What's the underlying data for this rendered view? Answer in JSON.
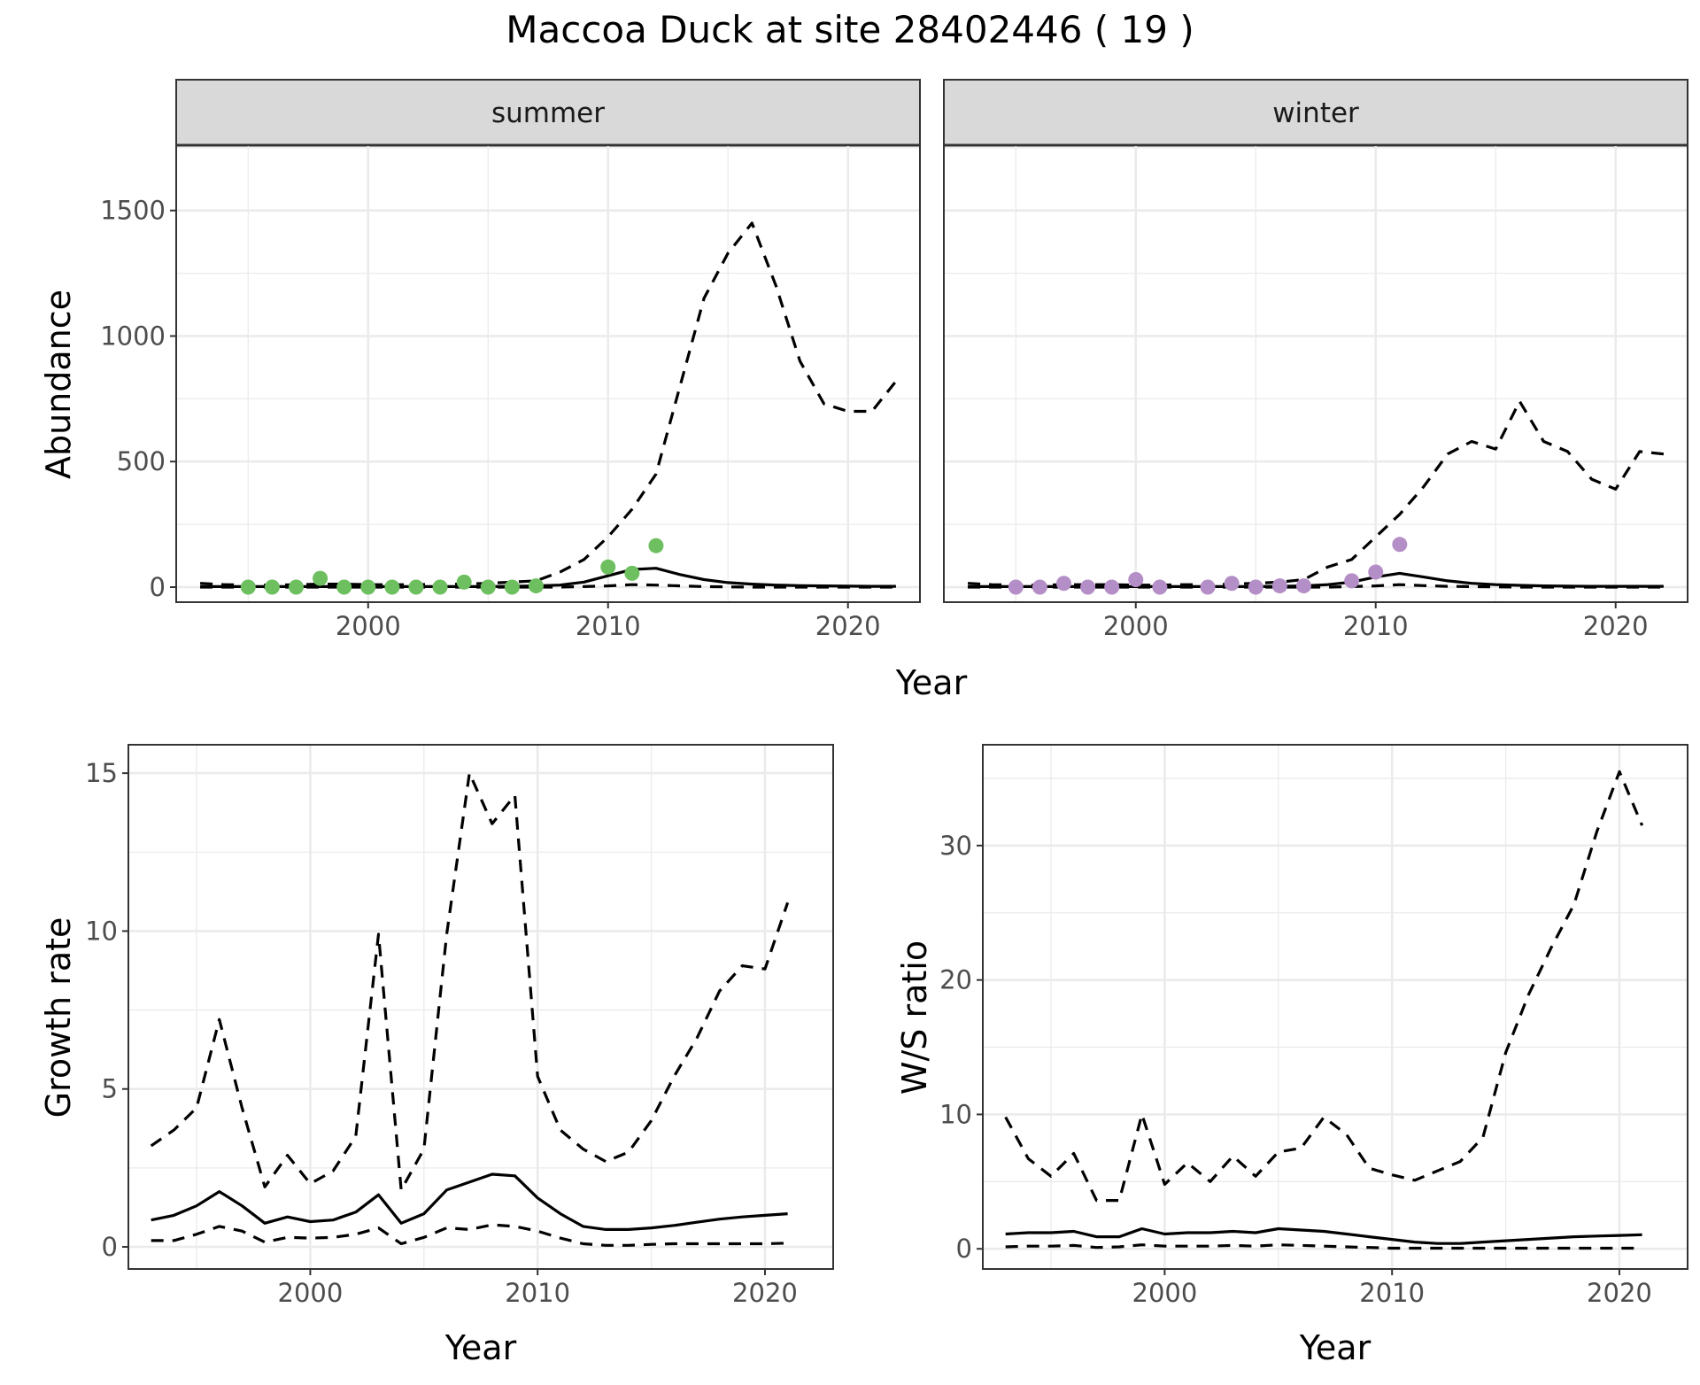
{
  "figure": {
    "title": "Maccoa Duck at site 28402446 ( 19 )"
  },
  "style": {
    "summer_point_color": "#6dbf5f",
    "winter_point_color": "#b48ec6",
    "line_color": "#000000",
    "grid_major": "#ebebeb",
    "grid_minor": "#f5f5f5",
    "strip_fill": "#d9d9d9",
    "strip_border": "#333333"
  },
  "chart_data": [
    {
      "type": "line",
      "facet": "summer",
      "xlabel": "Year",
      "ylabel": "Abundance",
      "xlim": [
        1992,
        2023
      ],
      "ylim": [
        -60,
        1760
      ],
      "xticks": [
        2000,
        2010,
        2020
      ],
      "yticks": [
        0,
        500,
        1000,
        1500
      ],
      "grid": true,
      "points": {
        "x": [
          1995,
          1996,
          1997,
          1998,
          1999,
          2000,
          2001,
          2002,
          2003,
          2004,
          2005,
          2006,
          2007,
          2010,
          2011,
          2012
        ],
        "y": [
          0,
          0,
          0,
          35,
          0,
          0,
          0,
          0,
          0,
          20,
          0,
          0,
          5,
          80,
          55,
          165
        ]
      },
      "series": [
        {
          "style": "solid",
          "x": [
            1993,
            1994,
            1995,
            1996,
            1997,
            1998,
            1999,
            2000,
            2001,
            2002,
            2003,
            2004,
            2005,
            2006,
            2007,
            2008,
            2009,
            2010,
            2011,
            2012,
            2013,
            2014,
            2015,
            2016,
            2017,
            2018,
            2019,
            2020,
            2021,
            2022
          ],
          "y": [
            2,
            2,
            2,
            2,
            2,
            2,
            2,
            2,
            2,
            2,
            2,
            2,
            2,
            3,
            5,
            8,
            20,
            45,
            70,
            75,
            50,
            30,
            18,
            12,
            8,
            6,
            5,
            4,
            3,
            3
          ]
        },
        {
          "style": "dashed",
          "x": [
            1993,
            1994,
            1995,
            1996,
            1997,
            1998,
            1999,
            2000,
            2001,
            2002,
            2003,
            2004,
            2005,
            2006,
            2007,
            2008,
            2009,
            2010,
            2011,
            2012,
            2013,
            2014,
            2015,
            2016,
            2017,
            2018,
            2019,
            2020,
            2021,
            2022
          ],
          "y": [
            15,
            10,
            8,
            8,
            10,
            12,
            12,
            10,
            10,
            10,
            12,
            12,
            15,
            20,
            25,
            60,
            110,
            200,
            310,
            450,
            800,
            1150,
            1330,
            1450,
            1200,
            900,
            730,
            700,
            700,
            820
          ]
        },
        {
          "style": "dashed",
          "x": [
            1993,
            1994,
            1995,
            1996,
            1997,
            1998,
            1999,
            2000,
            2001,
            2002,
            2003,
            2004,
            2005,
            2006,
            2007,
            2008,
            2009,
            2010,
            2011,
            2012,
            2013,
            2014,
            2015,
            2016,
            2017,
            2018,
            2019,
            2020,
            2021,
            2022
          ],
          "y": [
            0,
            0,
            0,
            0,
            0,
            0,
            0,
            0,
            0,
            0,
            0,
            0,
            0,
            0,
            0,
            0,
            2,
            5,
            10,
            8,
            5,
            2,
            1,
            0,
            0,
            0,
            0,
            0,
            0,
            0
          ]
        }
      ]
    },
    {
      "type": "line",
      "facet": "winter",
      "xlabel": "Year",
      "ylabel": "Abundance",
      "xlim": [
        1992,
        2023
      ],
      "ylim": [
        -60,
        1760
      ],
      "xticks": [
        2000,
        2010,
        2020
      ],
      "yticks": [
        0,
        500,
        1000,
        1500
      ],
      "grid": true,
      "points": {
        "x": [
          1995,
          1996,
          1997,
          1998,
          1999,
          2000,
          2001,
          2003,
          2004,
          2005,
          2006,
          2007,
          2009,
          2010,
          2011
        ],
        "y": [
          0,
          0,
          15,
          0,
          0,
          30,
          0,
          0,
          15,
          0,
          5,
          5,
          25,
          60,
          170
        ]
      },
      "series": [
        {
          "style": "solid",
          "x": [
            1993,
            1994,
            1995,
            1996,
            1997,
            1998,
            1999,
            2000,
            2001,
            2002,
            2003,
            2004,
            2005,
            2006,
            2007,
            2008,
            2009,
            2010,
            2011,
            2012,
            2013,
            2014,
            2015,
            2016,
            2017,
            2018,
            2019,
            2020,
            2021,
            2022
          ],
          "y": [
            2,
            2,
            2,
            2,
            2,
            2,
            2,
            2,
            2,
            2,
            2,
            2,
            2,
            3,
            5,
            10,
            20,
            40,
            55,
            40,
            25,
            15,
            10,
            7,
            5,
            4,
            3,
            3,
            3,
            3
          ]
        },
        {
          "style": "dashed",
          "x": [
            1993,
            1994,
            1995,
            1996,
            1997,
            1998,
            1999,
            2000,
            2001,
            2002,
            2003,
            2004,
            2005,
            2006,
            2007,
            2008,
            2009,
            2010,
            2011,
            2012,
            2013,
            2014,
            2015,
            2016,
            2017,
            2018,
            2019,
            2020,
            2021,
            2022
          ],
          "y": [
            15,
            10,
            8,
            8,
            10,
            10,
            10,
            8,
            8,
            10,
            10,
            12,
            15,
            20,
            30,
            80,
            110,
            200,
            290,
            400,
            530,
            580,
            550,
            740,
            580,
            540,
            430,
            390,
            540,
            530
          ]
        },
        {
          "style": "dashed",
          "x": [
            1993,
            1994,
            1995,
            1996,
            1997,
            1998,
            1999,
            2000,
            2001,
            2002,
            2003,
            2004,
            2005,
            2006,
            2007,
            2008,
            2009,
            2010,
            2011,
            2012,
            2013,
            2014,
            2015,
            2016,
            2017,
            2018,
            2019,
            2020,
            2021,
            2022
          ],
          "y": [
            0,
            0,
            0,
            0,
            0,
            0,
            0,
            0,
            0,
            0,
            0,
            0,
            0,
            0,
            0,
            0,
            2,
            5,
            10,
            6,
            3,
            2,
            1,
            0,
            0,
            0,
            0,
            0,
            0,
            0
          ]
        }
      ]
    },
    {
      "type": "line",
      "xlabel": "Year",
      "ylabel": "Growth rate",
      "xlim": [
        1992,
        2023
      ],
      "ylim": [
        -0.7,
        15.9
      ],
      "xticks": [
        2000,
        2010,
        2020
      ],
      "yticks": [
        0,
        5,
        10,
        15
      ],
      "grid": true,
      "series": [
        {
          "style": "solid",
          "x": [
            1993,
            1994,
            1995,
            1996,
            1997,
            1998,
            1999,
            2000,
            2001,
            2002,
            2003,
            2004,
            2005,
            2006,
            2007,
            2008,
            2009,
            2010,
            2011,
            2012,
            2013,
            2014,
            2015,
            2016,
            2017,
            2018,
            2019,
            2020,
            2021
          ],
          "y": [
            0.85,
            1.0,
            1.3,
            1.75,
            1.3,
            0.75,
            0.95,
            0.8,
            0.85,
            1.1,
            1.65,
            0.75,
            1.05,
            1.8,
            2.05,
            2.3,
            2.25,
            1.55,
            1.05,
            0.65,
            0.55,
            0.55,
            0.6,
            0.68,
            0.78,
            0.88,
            0.95,
            1.0,
            1.05
          ]
        },
        {
          "style": "dashed",
          "x": [
            1993,
            1994,
            1995,
            1996,
            1997,
            1998,
            1999,
            2000,
            2001,
            2002,
            2003,
            2004,
            2005,
            2006,
            2007,
            2008,
            2009,
            2010,
            2011,
            2012,
            2013,
            2014,
            2015,
            2016,
            2017,
            2018,
            2019,
            2020,
            2021
          ],
          "y": [
            3.2,
            3.7,
            4.4,
            7.2,
            4.4,
            1.9,
            2.9,
            2.0,
            2.4,
            3.5,
            9.9,
            1.8,
            3.1,
            9.9,
            15.0,
            13.4,
            14.3,
            5.4,
            3.7,
            3.1,
            2.7,
            3.0,
            4.0,
            5.4,
            6.6,
            8.1,
            8.9,
            8.8,
            10.9
          ]
        },
        {
          "style": "dashed",
          "x": [
            1993,
            1994,
            1995,
            1996,
            1997,
            1998,
            1999,
            2000,
            2001,
            2002,
            2003,
            2004,
            2005,
            2006,
            2007,
            2008,
            2009,
            2010,
            2011,
            2012,
            2013,
            2014,
            2015,
            2016,
            2017,
            2018,
            2019,
            2020,
            2021
          ],
          "y": [
            0.2,
            0.2,
            0.4,
            0.65,
            0.5,
            0.15,
            0.3,
            0.28,
            0.3,
            0.4,
            0.6,
            0.1,
            0.3,
            0.6,
            0.55,
            0.7,
            0.65,
            0.5,
            0.28,
            0.1,
            0.05,
            0.05,
            0.08,
            0.1,
            0.1,
            0.1,
            0.1,
            0.1,
            0.12
          ]
        }
      ]
    },
    {
      "type": "line",
      "xlabel": "Year",
      "ylabel": "W/S ratio",
      "xlim": [
        1992,
        2023
      ],
      "ylim": [
        -1.5,
        37.5
      ],
      "xticks": [
        2000,
        2010,
        2020
      ],
      "yticks": [
        0,
        10,
        20,
        30
      ],
      "grid": true,
      "series": [
        {
          "style": "solid",
          "x": [
            1993,
            1994,
            1995,
            1996,
            1997,
            1998,
            1999,
            2000,
            2001,
            2002,
            2003,
            2004,
            2005,
            2006,
            2007,
            2008,
            2009,
            2010,
            2011,
            2012,
            2013,
            2014,
            2015,
            2016,
            2017,
            2018,
            2019,
            2020,
            2021
          ],
          "y": [
            1.1,
            1.2,
            1.2,
            1.3,
            0.9,
            0.9,
            1.5,
            1.1,
            1.2,
            1.2,
            1.3,
            1.2,
            1.5,
            1.4,
            1.3,
            1.1,
            0.9,
            0.7,
            0.5,
            0.4,
            0.4,
            0.5,
            0.6,
            0.7,
            0.8,
            0.9,
            0.95,
            1.0,
            1.05
          ]
        },
        {
          "style": "dashed",
          "x": [
            1993,
            1994,
            1995,
            1996,
            1997,
            1998,
            1999,
            2000,
            2001,
            2002,
            2003,
            2004,
            2005,
            2006,
            2007,
            2008,
            2009,
            2010,
            2011,
            2012,
            2013,
            2014,
            2015,
            2016,
            2017,
            2018,
            2019,
            2020,
            2021
          ],
          "y": [
            9.8,
            6.7,
            5.4,
            7.1,
            3.6,
            3.6,
            10.0,
            4.8,
            6.4,
            5.0,
            6.9,
            5.4,
            7.2,
            7.5,
            9.8,
            8.5,
            6.0,
            5.5,
            5.1,
            5.8,
            6.5,
            8.3,
            14.6,
            18.9,
            22.4,
            25.6,
            31.0,
            35.5,
            31.5
          ]
        },
        {
          "style": "dashed",
          "x": [
            1993,
            1994,
            1995,
            1996,
            1997,
            1998,
            1999,
            2000,
            2001,
            2002,
            2003,
            2004,
            2005,
            2006,
            2007,
            2008,
            2009,
            2010,
            2011,
            2012,
            2013,
            2014,
            2015,
            2016,
            2017,
            2018,
            2019,
            2020,
            2021
          ],
          "y": [
            0.15,
            0.2,
            0.2,
            0.25,
            0.1,
            0.15,
            0.3,
            0.2,
            0.2,
            0.2,
            0.25,
            0.2,
            0.3,
            0.25,
            0.2,
            0.15,
            0.1,
            0.05,
            0.05,
            0.05,
            0.05,
            0.05,
            0.05,
            0.05,
            0.05,
            0.05,
            0.05,
            0.05,
            0.05
          ]
        }
      ]
    }
  ]
}
